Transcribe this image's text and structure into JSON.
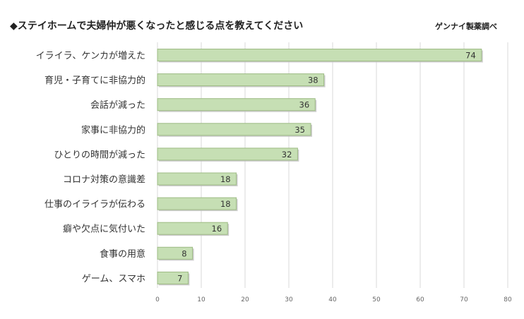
{
  "header": {
    "title": "◆ステイホームで夫婦仲が悪くなったと感じる点を教えてください",
    "source": "ゲンナイ製薬調べ"
  },
  "chart_data": {
    "type": "bar",
    "orientation": "horizontal",
    "title": "◆ステイホームで夫婦仲が悪くなったと感じる点を教えてください",
    "categories": [
      "イライラ、ケンカが増えた",
      "育児・子育てに非協力的",
      "会話が減った",
      "家事に非協力的",
      "ひとりの時間が減った",
      "コロナ対策の意識差",
      "仕事のイライラが伝わる",
      "癖や欠点に気付いた",
      "食事の用意",
      "ゲーム、スマホ"
    ],
    "values": [
      74,
      38,
      36,
      35,
      32,
      18,
      18,
      16,
      8,
      7
    ],
    "xlim": [
      0,
      80
    ],
    "xticks": [
      0,
      10,
      20,
      30,
      40,
      50,
      60,
      70,
      80
    ],
    "grid": true,
    "data_labels": true,
    "colors": {
      "bar_fill": "#c6dfb4",
      "bar_stroke": "#9dbb84",
      "bar_shadow": "#bdbdbd",
      "grid": "#d9d9d9",
      "text": "#333333"
    }
  }
}
